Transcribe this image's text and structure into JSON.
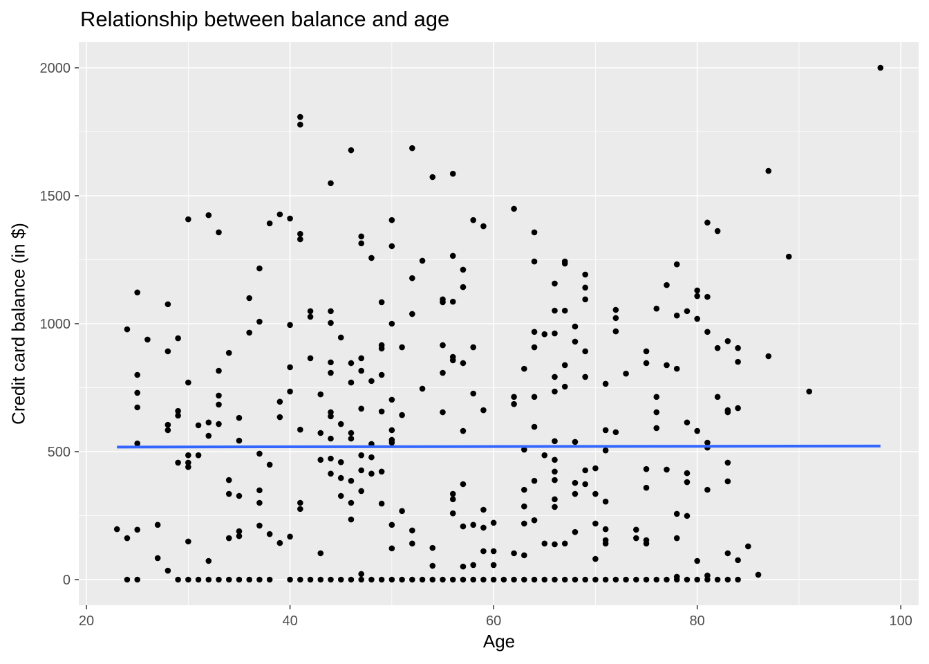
{
  "chart_data": {
    "type": "scatter",
    "title": "Relationship between balance and age",
    "xlabel": "Age",
    "ylabel": "Credit card balance (in $)",
    "xlim": [
      19.25,
      101.75
    ],
    "ylim": [
      -100,
      2100
    ],
    "x_ticks": [
      20,
      40,
      60,
      80,
      100
    ],
    "y_ticks": [
      0,
      500,
      1000,
      1500,
      2000
    ],
    "x_minor": [
      30,
      50,
      70,
      90
    ],
    "y_minor": [
      250,
      750,
      1250,
      1750
    ],
    "grid": true,
    "colors": {
      "panel": "#EBEBEB",
      "grid": "#FFFFFF",
      "point": "#000000",
      "smooth": "#3366FF",
      "tick_text": "#4D4D4D"
    },
    "smooth_line": {
      "method": "lm",
      "x": [
        23,
        98
      ],
      "y": [
        518,
        522
      ]
    },
    "points": [
      [
        23,
        197
      ],
      [
        24,
        978
      ],
      [
        24,
        162
      ],
      [
        24,
        0
      ],
      [
        25,
        1122
      ],
      [
        25,
        800
      ],
      [
        25,
        730
      ],
      [
        25,
        673
      ],
      [
        25,
        532
      ],
      [
        25,
        195
      ],
      [
        25,
        0
      ],
      [
        26,
        938
      ],
      [
        27,
        214
      ],
      [
        27,
        84
      ],
      [
        28,
        1076
      ],
      [
        28,
        892
      ],
      [
        28,
        605
      ],
      [
        28,
        584
      ],
      [
        28,
        35
      ],
      [
        29,
        943
      ],
      [
        29,
        659
      ],
      [
        29,
        641
      ],
      [
        29,
        457
      ],
      [
        29,
        0
      ],
      [
        30,
        1408
      ],
      [
        30,
        770
      ],
      [
        30,
        486
      ],
      [
        30,
        457
      ],
      [
        30,
        440
      ],
      [
        30,
        149
      ],
      [
        30,
        0
      ],
      [
        31,
        603
      ],
      [
        31,
        486
      ],
      [
        31,
        0
      ],
      [
        32,
        1424
      ],
      [
        32,
        614
      ],
      [
        32,
        562
      ],
      [
        32,
        73
      ],
      [
        32,
        0
      ],
      [
        33,
        1357
      ],
      [
        33,
        816
      ],
      [
        33,
        719
      ],
      [
        33,
        684
      ],
      [
        33,
        608
      ],
      [
        33,
        0
      ],
      [
        34,
        886
      ],
      [
        34,
        389
      ],
      [
        34,
        335
      ],
      [
        34,
        162
      ],
      [
        34,
        0
      ],
      [
        35,
        632
      ],
      [
        35,
        543
      ],
      [
        35,
        327
      ],
      [
        35,
        189
      ],
      [
        35,
        170
      ],
      [
        35,
        0
      ],
      [
        36,
        1100
      ],
      [
        36,
        965
      ],
      [
        36,
        0
      ],
      [
        37,
        1216
      ],
      [
        37,
        1008
      ],
      [
        37,
        492
      ],
      [
        37,
        349
      ],
      [
        37,
        300
      ],
      [
        37,
        211
      ],
      [
        37,
        0
      ],
      [
        38,
        1392
      ],
      [
        38,
        449
      ],
      [
        38,
        178
      ],
      [
        38,
        0
      ],
      [
        39,
        1427
      ],
      [
        39,
        695
      ],
      [
        39,
        635
      ],
      [
        39,
        143
      ],
      [
        40,
        1411
      ],
      [
        40,
        995
      ],
      [
        40,
        830
      ],
      [
        40,
        735
      ],
      [
        40,
        168
      ],
      [
        40,
        0
      ],
      [
        41,
        1808
      ],
      [
        41,
        1778
      ],
      [
        41,
        1351
      ],
      [
        41,
        1330
      ],
      [
        41,
        586
      ],
      [
        41,
        300
      ],
      [
        41,
        276
      ],
      [
        41,
        0
      ],
      [
        42,
        1049
      ],
      [
        42,
        1027
      ],
      [
        42,
        865
      ],
      [
        42,
        0
      ],
      [
        43,
        724
      ],
      [
        43,
        573
      ],
      [
        43,
        468
      ],
      [
        43,
        103
      ],
      [
        43,
        0
      ],
      [
        44,
        1549
      ],
      [
        44,
        1049
      ],
      [
        44,
        1003
      ],
      [
        44,
        849
      ],
      [
        44,
        808
      ],
      [
        44,
        654
      ],
      [
        44,
        638
      ],
      [
        44,
        551
      ],
      [
        44,
        473
      ],
      [
        44,
        414
      ],
      [
        44,
        0
      ],
      [
        45,
        946
      ],
      [
        45,
        608
      ],
      [
        45,
        459
      ],
      [
        45,
        397
      ],
      [
        45,
        327
      ],
      [
        45,
        0
      ],
      [
        46,
        1678
      ],
      [
        46,
        846
      ],
      [
        46,
        770
      ],
      [
        46,
        573
      ],
      [
        46,
        551
      ],
      [
        46,
        386
      ],
      [
        46,
        300
      ],
      [
        46,
        235
      ],
      [
        46,
        0
      ],
      [
        47,
        1341
      ],
      [
        47,
        1314
      ],
      [
        47,
        865
      ],
      [
        47,
        816
      ],
      [
        47,
        668
      ],
      [
        47,
        486
      ],
      [
        47,
        427
      ],
      [
        47,
        346
      ],
      [
        47,
        22
      ],
      [
        47,
        0
      ],
      [
        48,
        1257
      ],
      [
        48,
        776
      ],
      [
        48,
        530
      ],
      [
        48,
        478
      ],
      [
        48,
        414
      ],
      [
        48,
        0
      ],
      [
        49,
        1084
      ],
      [
        49,
        916
      ],
      [
        49,
        903
      ],
      [
        49,
        800
      ],
      [
        49,
        657
      ],
      [
        49,
        422
      ],
      [
        49,
        297
      ],
      [
        49,
        0
      ],
      [
        50,
        1405
      ],
      [
        50,
        1303
      ],
      [
        50,
        1000
      ],
      [
        50,
        703
      ],
      [
        50,
        584
      ],
      [
        50,
        546
      ],
      [
        50,
        535
      ],
      [
        50,
        214
      ],
      [
        50,
        122
      ],
      [
        50,
        0
      ],
      [
        51,
        908
      ],
      [
        51,
        643
      ],
      [
        51,
        268
      ],
      [
        51,
        0
      ],
      [
        52,
        1686
      ],
      [
        52,
        1178
      ],
      [
        52,
        1038
      ],
      [
        52,
        192
      ],
      [
        52,
        141
      ],
      [
        52,
        0
      ],
      [
        53,
        1246
      ],
      [
        53,
        746
      ],
      [
        53,
        0
      ],
      [
        54,
        1573
      ],
      [
        54,
        124
      ],
      [
        54,
        54
      ],
      [
        54,
        0
      ],
      [
        55,
        1095
      ],
      [
        55,
        1084
      ],
      [
        55,
        916
      ],
      [
        55,
        808
      ],
      [
        55,
        654
      ],
      [
        55,
        0
      ],
      [
        56,
        1586
      ],
      [
        56,
        1265
      ],
      [
        56,
        1086
      ],
      [
        56,
        870
      ],
      [
        56,
        857
      ],
      [
        56,
        335
      ],
      [
        56,
        314
      ],
      [
        56,
        259
      ],
      [
        56,
        0
      ],
      [
        57,
        1211
      ],
      [
        57,
        1143
      ],
      [
        57,
        846
      ],
      [
        57,
        581
      ],
      [
        57,
        373
      ],
      [
        57,
        208
      ],
      [
        57,
        51
      ],
      [
        57,
        0
      ],
      [
        58,
        1405
      ],
      [
        58,
        908
      ],
      [
        58,
        727
      ],
      [
        58,
        214
      ],
      [
        58,
        57
      ],
      [
        58,
        0
      ],
      [
        59,
        1381
      ],
      [
        59,
        662
      ],
      [
        59,
        273
      ],
      [
        59,
        203
      ],
      [
        59,
        111
      ],
      [
        59,
        0
      ],
      [
        60,
        222
      ],
      [
        60,
        111
      ],
      [
        60,
        57
      ],
      [
        60,
        0
      ],
      [
        61,
        0
      ],
      [
        62,
        1449
      ],
      [
        62,
        714
      ],
      [
        62,
        686
      ],
      [
        62,
        103
      ],
      [
        62,
        0
      ],
      [
        63,
        824
      ],
      [
        63,
        508
      ],
      [
        63,
        351
      ],
      [
        63,
        286
      ],
      [
        63,
        219
      ],
      [
        63,
        95
      ],
      [
        63,
        0
      ],
      [
        64,
        1357
      ],
      [
        64,
        1243
      ],
      [
        64,
        968
      ],
      [
        64,
        908
      ],
      [
        64,
        714
      ],
      [
        64,
        597
      ],
      [
        64,
        386
      ],
      [
        64,
        232
      ],
      [
        64,
        0
      ],
      [
        65,
        959
      ],
      [
        65,
        486
      ],
      [
        65,
        141
      ],
      [
        65,
        0
      ],
      [
        66,
        1157
      ],
      [
        66,
        1051
      ],
      [
        66,
        962
      ],
      [
        66,
        792
      ],
      [
        66,
        735
      ],
      [
        66,
        541
      ],
      [
        66,
        468
      ],
      [
        66,
        422
      ],
      [
        66,
        389
      ],
      [
        66,
        314
      ],
      [
        66,
        284
      ],
      [
        66,
        138
      ],
      [
        66,
        0
      ],
      [
        67,
        1243
      ],
      [
        67,
        1235
      ],
      [
        67,
        1051
      ],
      [
        67,
        838
      ],
      [
        67,
        754
      ],
      [
        67,
        141
      ],
      [
        67,
        0
      ],
      [
        68,
        989
      ],
      [
        68,
        930
      ],
      [
        68,
        538
      ],
      [
        68,
        378
      ],
      [
        68,
        335
      ],
      [
        68,
        186
      ],
      [
        68,
        0
      ],
      [
        69,
        1192
      ],
      [
        69,
        1141
      ],
      [
        69,
        1095
      ],
      [
        69,
        892
      ],
      [
        69,
        792
      ],
      [
        69,
        427
      ],
      [
        69,
        373
      ],
      [
        69,
        0
      ],
      [
        70,
        435
      ],
      [
        70,
        335
      ],
      [
        70,
        219
      ],
      [
        70,
        81
      ],
      [
        70,
        0
      ],
      [
        71,
        765
      ],
      [
        71,
        584
      ],
      [
        71,
        505
      ],
      [
        71,
        305
      ],
      [
        71,
        197
      ],
      [
        71,
        154
      ],
      [
        71,
        141
      ],
      [
        71,
        0
      ],
      [
        72,
        1054
      ],
      [
        72,
        1022
      ],
      [
        72,
        970
      ],
      [
        72,
        576
      ],
      [
        72,
        0
      ],
      [
        73,
        805
      ],
      [
        73,
        0
      ],
      [
        74,
        195
      ],
      [
        74,
        162
      ],
      [
        74,
        0
      ],
      [
        75,
        892
      ],
      [
        75,
        846
      ],
      [
        75,
        432
      ],
      [
        75,
        359
      ],
      [
        75,
        154
      ],
      [
        75,
        141
      ],
      [
        75,
        0
      ],
      [
        76,
        1059
      ],
      [
        76,
        714
      ],
      [
        76,
        654
      ],
      [
        76,
        592
      ],
      [
        76,
        0
      ],
      [
        77,
        1151
      ],
      [
        77,
        838
      ],
      [
        77,
        430
      ],
      [
        77,
        0
      ],
      [
        78,
        1232
      ],
      [
        78,
        1032
      ],
      [
        78,
        824
      ],
      [
        78,
        257
      ],
      [
        78,
        162
      ],
      [
        78,
        11
      ],
      [
        78,
        0
      ],
      [
        79,
        1049
      ],
      [
        79,
        614
      ],
      [
        79,
        416
      ],
      [
        79,
        381
      ],
      [
        79,
        249
      ],
      [
        79,
        0
      ],
      [
        80,
        1130
      ],
      [
        80,
        1108
      ],
      [
        80,
        1019
      ],
      [
        80,
        581
      ],
      [
        80,
        73
      ],
      [
        80,
        0
      ],
      [
        81,
        1395
      ],
      [
        81,
        1105
      ],
      [
        81,
        968
      ],
      [
        81,
        535
      ],
      [
        81,
        516
      ],
      [
        81,
        351
      ],
      [
        81,
        16
      ],
      [
        81,
        0
      ],
      [
        82,
        1362
      ],
      [
        82,
        905
      ],
      [
        82,
        714
      ],
      [
        82,
        0
      ],
      [
        83,
        932
      ],
      [
        83,
        662
      ],
      [
        83,
        654
      ],
      [
        83,
        457
      ],
      [
        83,
        384
      ],
      [
        83,
        103
      ],
      [
        83,
        0
      ],
      [
        84,
        905
      ],
      [
        84,
        851
      ],
      [
        84,
        670
      ],
      [
        84,
        76
      ],
      [
        84,
        0
      ],
      [
        85,
        130
      ],
      [
        86,
        19
      ],
      [
        87,
        1597
      ],
      [
        87,
        873
      ],
      [
        89,
        1262
      ],
      [
        91,
        735
      ],
      [
        98,
        2000
      ]
    ]
  }
}
